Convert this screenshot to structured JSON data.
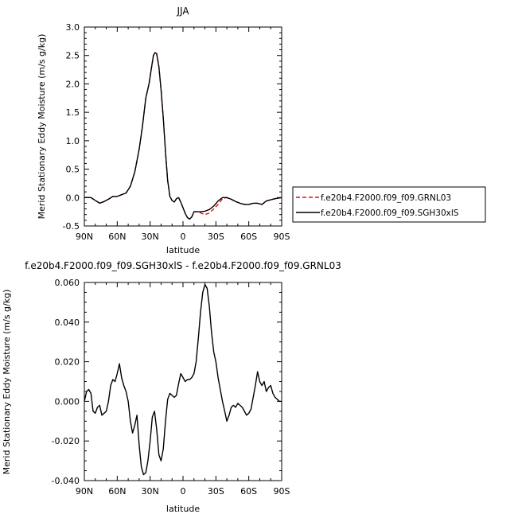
{
  "chart_data": [
    {
      "type": "line",
      "title": "JJA",
      "xlabel": "latitude",
      "ylabel": "Merid Stationary Eddy Moisture  (m/s g/kg)",
      "xlim": [
        -90,
        90
      ],
      "ylim": [
        -0.5,
        3.0
      ],
      "x_tick_values": [
        -90,
        -60,
        -30,
        0,
        30,
        60,
        90
      ],
      "x_tick_labels": [
        "90N",
        "60N",
        "30N",
        "0",
        "30S",
        "60S",
        "90S"
      ],
      "y_tick_values": [
        -0.5,
        0.0,
        0.5,
        1.0,
        1.5,
        2.0,
        2.5,
        3.0
      ],
      "y_tick_labels": [
        "-0.5",
        "0.0",
        "0.5",
        "1.0",
        "1.5",
        "2.0",
        "2.5",
        "3.0"
      ],
      "legend_position": "right",
      "series": [
        {
          "name": "f.e20b4.F2000.f09_f09.GRNL03",
          "color": "#dd1111",
          "dash": "dashed",
          "x": [
            -90,
            -84,
            -80,
            -76,
            -72,
            -68,
            -64,
            -60,
            -56,
            -52,
            -48,
            -44,
            -40,
            -37,
            -34,
            -31,
            -29,
            -27,
            -25.5,
            -24,
            -22,
            -20,
            -18,
            -16,
            -14,
            -12,
            -10,
            -8,
            -6,
            -4,
            -2,
            0,
            2,
            4,
            6,
            8,
            10,
            13,
            16,
            20,
            24,
            28,
            32,
            36,
            40,
            44,
            48,
            52,
            56,
            60,
            64,
            68,
            72,
            76,
            80,
            84,
            90
          ],
          "y": [
            0.0,
            0.0,
            -0.05,
            -0.1,
            -0.07,
            -0.03,
            0.02,
            0.02,
            0.05,
            0.08,
            0.2,
            0.45,
            0.85,
            1.25,
            1.75,
            2.0,
            2.25,
            2.5,
            2.55,
            2.53,
            2.3,
            1.9,
            1.4,
            0.8,
            0.3,
            0.02,
            -0.05,
            -0.08,
            -0.02,
            0.0,
            -0.08,
            -0.18,
            -0.28,
            -0.35,
            -0.38,
            -0.34,
            -0.25,
            -0.25,
            -0.27,
            -0.3,
            -0.27,
            -0.2,
            -0.12,
            -0.02,
            0.0,
            -0.03,
            -0.07,
            -0.1,
            -0.12,
            -0.12,
            -0.1,
            -0.1,
            -0.12,
            -0.06,
            -0.04,
            -0.02,
            0.0
          ]
        },
        {
          "name": "f.e20b4.F2000.f09_f09.SGH30xlS",
          "color": "#000000",
          "dash": "solid",
          "x": [
            -90,
            -84,
            -80,
            -76,
            -72,
            -68,
            -64,
            -60,
            -56,
            -52,
            -48,
            -44,
            -40,
            -37,
            -34,
            -31,
            -29,
            -27,
            -25.5,
            -24,
            -22,
            -20,
            -18,
            -16,
            -14,
            -12,
            -10,
            -8,
            -6,
            -4,
            -2,
            0,
            2,
            4,
            6,
            8,
            10,
            13,
            16,
            20,
            24,
            28,
            32,
            36,
            40,
            44,
            48,
            52,
            56,
            60,
            64,
            68,
            72,
            76,
            80,
            84,
            90
          ],
          "y": [
            0.0,
            0.0,
            -0.05,
            -0.1,
            -0.07,
            -0.03,
            0.02,
            0.02,
            0.05,
            0.08,
            0.2,
            0.45,
            0.85,
            1.25,
            1.75,
            2.0,
            2.25,
            2.5,
            2.55,
            2.53,
            2.3,
            1.9,
            1.4,
            0.8,
            0.3,
            0.02,
            -0.05,
            -0.08,
            -0.02,
            0.0,
            -0.08,
            -0.18,
            -0.28,
            -0.35,
            -0.38,
            -0.34,
            -0.25,
            -0.25,
            -0.25,
            -0.24,
            -0.21,
            -0.15,
            -0.06,
            0.0,
            0.0,
            -0.03,
            -0.07,
            -0.1,
            -0.12,
            -0.12,
            -0.1,
            -0.1,
            -0.12,
            -0.06,
            -0.04,
            -0.02,
            0.0
          ]
        }
      ]
    },
    {
      "type": "line",
      "title": "f.e20b4.F2000.f09_f09.SGH30xlS - f.e20b4.F2000.f09_f09.GRNL03",
      "xlabel": "latitude",
      "ylabel": "Merid Stationary Eddy Moisture  (m/s g/kg)",
      "xlim": [
        -90,
        90
      ],
      "ylim": [
        -0.04,
        0.06
      ],
      "x_tick_values": [
        -90,
        -60,
        -30,
        0,
        30,
        60,
        90
      ],
      "x_tick_labels": [
        "90N",
        "60N",
        "30N",
        "0",
        "30S",
        "60S",
        "90S"
      ],
      "y_tick_values": [
        -0.04,
        -0.02,
        0.0,
        0.02,
        0.04,
        0.06
      ],
      "y_tick_labels": [
        "-0.040",
        "-0.020",
        "0.000",
        "0.020",
        "0.040",
        "0.060"
      ],
      "series": [
        {
          "color": "#000000",
          "dash": "solid",
          "x": [
            -90,
            -88,
            -86,
            -84,
            -82,
            -80,
            -78,
            -76,
            -74,
            -72,
            -70,
            -68,
            -66,
            -64,
            -62,
            -60,
            -58,
            -56,
            -54,
            -52,
            -50,
            -48,
            -46,
            -44,
            -42,
            -40,
            -38,
            -36,
            -34,
            -32,
            -30,
            -28,
            -26,
            -24,
            -22,
            -20,
            -18,
            -16,
            -14,
            -12,
            -10,
            -8,
            -6,
            -4,
            -2,
            0,
            2,
            4,
            6,
            8,
            10,
            12,
            14,
            16,
            18,
            20,
            22,
            24,
            26,
            28,
            30,
            32,
            34,
            36,
            38,
            40,
            42,
            44,
            46,
            48,
            50,
            52,
            54,
            56,
            58,
            60,
            62,
            64,
            66,
            68,
            70,
            72,
            74,
            76,
            78,
            80,
            82,
            84,
            86,
            88,
            90
          ],
          "y": [
            0.0,
            0.005,
            0.006,
            0.004,
            -0.005,
            -0.006,
            -0.003,
            -0.002,
            -0.007,
            -0.006,
            -0.005,
            0.0,
            0.008,
            0.011,
            0.01,
            0.014,
            0.019,
            0.012,
            0.008,
            0.005,
            0.0,
            -0.01,
            -0.016,
            -0.012,
            -0.007,
            -0.022,
            -0.033,
            -0.037,
            -0.036,
            -0.03,
            -0.02,
            -0.008,
            -0.005,
            -0.014,
            -0.027,
            -0.03,
            -0.024,
            -0.01,
            0.001,
            0.004,
            0.003,
            0.002,
            0.003,
            0.009,
            0.014,
            0.012,
            0.01,
            0.011,
            0.011,
            0.012,
            0.014,
            0.02,
            0.032,
            0.045,
            0.055,
            0.059,
            0.057,
            0.048,
            0.035,
            0.025,
            0.02,
            0.012,
            0.006,
            0.0,
            -0.005,
            -0.01,
            -0.007,
            -0.003,
            -0.002,
            -0.003,
            -0.001,
            -0.002,
            -0.003,
            -0.005,
            -0.007,
            -0.006,
            -0.004,
            0.002,
            0.008,
            0.015,
            0.01,
            0.008,
            0.01,
            0.005,
            0.007,
            0.008,
            0.004,
            0.002,
            0.001,
            0.0,
            0.0
          ]
        }
      ]
    }
  ]
}
